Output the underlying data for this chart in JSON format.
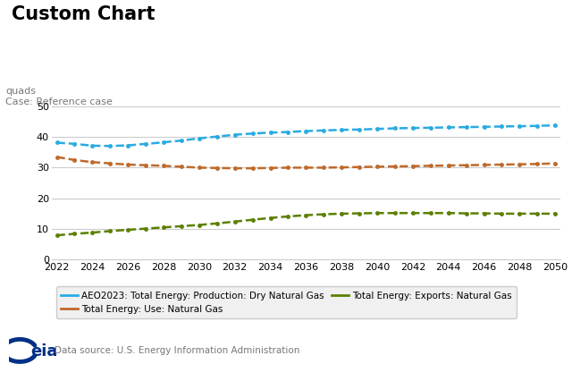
{
  "title": "Custom Chart",
  "ylabel": "quads",
  "case_label": "Case: Reference case",
  "datasource": "Data source: U.S. Energy Information Administration",
  "years": [
    2022,
    2023,
    2024,
    2025,
    2026,
    2027,
    2028,
    2029,
    2030,
    2031,
    2032,
    2033,
    2034,
    2035,
    2036,
    2037,
    2038,
    2039,
    2040,
    2041,
    2042,
    2043,
    2044,
    2045,
    2046,
    2047,
    2048,
    2049,
    2050
  ],
  "production": [
    38.2,
    37.8,
    37.2,
    37.1,
    37.3,
    37.8,
    38.3,
    38.9,
    39.6,
    40.2,
    40.8,
    41.2,
    41.5,
    41.7,
    42.0,
    42.2,
    42.4,
    42.5,
    42.7,
    42.9,
    43.0,
    43.1,
    43.2,
    43.3,
    43.4,
    43.5,
    43.6,
    43.7,
    43.9
  ],
  "use": [
    33.5,
    32.5,
    31.8,
    31.4,
    31.0,
    30.8,
    30.6,
    30.3,
    30.0,
    29.9,
    29.8,
    29.8,
    29.9,
    30.0,
    30.0,
    30.0,
    30.1,
    30.2,
    30.3,
    30.4,
    30.5,
    30.6,
    30.7,
    30.8,
    30.9,
    31.0,
    31.1,
    31.2,
    31.4
  ],
  "exports": [
    7.8,
    8.3,
    8.7,
    9.2,
    9.6,
    10.0,
    10.4,
    10.8,
    11.2,
    11.7,
    12.3,
    12.9,
    13.5,
    14.0,
    14.4,
    14.7,
    14.9,
    15.0,
    15.1,
    15.1,
    15.1,
    15.1,
    15.1,
    15.0,
    15.0,
    14.9,
    14.9,
    14.9,
    14.9
  ],
  "color_production": "#29ABE2",
  "color_use": "#C0692A",
  "color_exports": "#5B8000",
  "legend_label_production": "AEO2023: Total Energy: Production: Dry Natural Gas",
  "legend_label_use": "Total Energy: Use: Natural Gas",
  "legend_label_exports": "Total Energy: Exports: Natural Gas",
  "xlim": [
    2022,
    2050
  ],
  "ylim": [
    0,
    50
  ],
  "yticks": [
    0,
    10,
    20,
    30,
    40,
    50
  ],
  "xticks": [
    2022,
    2024,
    2026,
    2028,
    2030,
    2032,
    2034,
    2036,
    2038,
    2040,
    2042,
    2044,
    2046,
    2048,
    2050
  ],
  "background_color": "#ffffff",
  "grid_color": "#cccccc",
  "title_fontsize": 15,
  "tick_fontsize": 8,
  "legend_fontsize": 7.5,
  "case_fontsize": 8,
  "ylabel_fontsize": 8
}
